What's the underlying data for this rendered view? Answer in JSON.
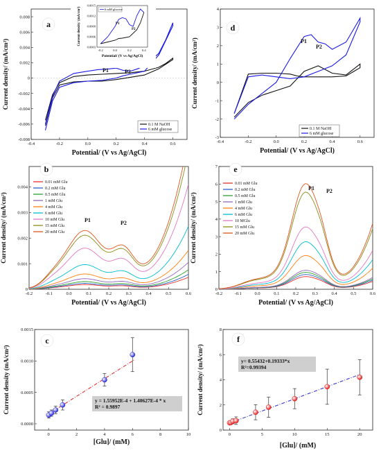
{
  "chart_data": [
    {
      "panel": "a",
      "type": "line",
      "xlabel": "Potential/ (V vs Ag/AgCl)",
      "ylabel": "Current density/ (mA/cm²)",
      "xlim": [
        -0.4,
        0.7
      ],
      "ylim": [
        -0.008,
        0.009
      ],
      "xticks": [
        "-0.4",
        "-0.2",
        "0.0",
        "0.2",
        "0.4",
        "0.6"
      ],
      "yticks": [
        "-0.008",
        "-0.006",
        "-0.004",
        "-0.002",
        "0",
        "0.002",
        "0.004",
        "0.006",
        "0.008"
      ],
      "legend": [
        "0.1 M NaOH",
        "6 mM glucose"
      ],
      "annotations": [
        "P1",
        "P2"
      ],
      "series": [
        {
          "name": "0.1 M NaOH",
          "color": "#111111",
          "x": [
            -0.3,
            -0.25,
            -0.2,
            -0.1,
            0.0,
            0.1,
            0.2,
            0.3,
            0.4,
            0.5,
            0.55,
            0.6,
            0.6,
            0.5,
            0.4,
            0.3,
            0.2,
            0.1,
            0.0,
            -0.1,
            -0.2,
            -0.25,
            -0.3
          ],
          "y": [
            -0.0055,
            -0.0022,
            -0.0006,
            0.0002,
            0.0004,
            0.0005,
            0.0006,
            0.0007,
            0.0009,
            0.0014,
            0.0019,
            0.0026,
            0.0024,
            0.0012,
            0.0004,
            0.0001,
            -0.0002,
            -0.0004,
            -0.0004,
            -0.0005,
            -0.0009,
            -0.0026,
            -0.0062
          ]
        },
        {
          "name": "6 mM glucose",
          "color": "#1a1ae6",
          "x": [
            -0.3,
            -0.25,
            -0.2,
            -0.1,
            0.0,
            0.07,
            0.15,
            0.2,
            0.25,
            0.3,
            0.35,
            0.4,
            0.5,
            0.55,
            0.6,
            0.6,
            0.5,
            0.4,
            0.3,
            0.25,
            0.2,
            0.1,
            0.0,
            -0.1,
            -0.2,
            -0.25,
            -0.3
          ],
          "y": [
            -0.006,
            -0.0024,
            -0.0004,
            0.0006,
            0.0009,
            0.0011,
            0.0012,
            0.0013,
            0.001,
            0.0009,
            0.0012,
            0.0016,
            0.0032,
            0.005,
            0.0072,
            0.0068,
            0.003,
            0.0009,
            0.0005,
            0.0003,
            0.0,
            -0.0003,
            -0.0004,
            -0.0006,
            -0.0012,
            -0.003,
            -0.0068
          ]
        }
      ]
    },
    {
      "panel": "a-inset",
      "type": "line",
      "title": "",
      "xlim": [
        -0.25,
        0.45
      ],
      "ylim": [
        0.0003,
        0.0015
      ],
      "xticks": [
        "-0.2",
        "0.0",
        "0.2",
        "0.4"
      ],
      "yticks": [
        "0.0003",
        "0.0006",
        "0.0009",
        "0.0012",
        "0.0015"
      ],
      "xlabel": "Potential/ (V vs Ag/AgCl)",
      "ylabel": "Current density/ (mA/cm²)",
      "legend": [
        "6 mM glucose"
      ],
      "annotations": [
        "P1",
        "P2"
      ],
      "series": [
        {
          "name": "6 mM glucose",
          "color": "#1a1ae6",
          "x": [
            -0.2,
            -0.1,
            0.0,
            0.05,
            0.1,
            0.15,
            0.2,
            0.25,
            0.3,
            0.35,
            0.4
          ],
          "y": [
            0.0004,
            0.0006,
            0.0009,
            0.0011,
            0.00115,
            0.00112,
            0.00095,
            0.0009,
            0.0012,
            0.0014,
            0.0013
          ]
        },
        {
          "name": "return",
          "color": "#111111",
          "x": [
            0.4,
            0.35,
            0.3,
            0.25,
            0.2,
            0.15,
            0.1,
            0.05,
            0.0,
            -0.1,
            -0.2
          ],
          "y": [
            0.0013,
            0.001,
            0.0008,
            0.0007,
            0.0006,
            0.00058,
            0.00056,
            0.00055,
            0.0005,
            0.00045,
            0.0004
          ]
        }
      ]
    },
    {
      "panel": "b",
      "type": "line",
      "xlabel": "Potential/ (V vs Ag/AgCl)",
      "ylabel": "Current density/ (mA/cm²)",
      "xlim": [
        -0.2,
        0.6
      ],
      "ylim": [
        0,
        0.0048
      ],
      "xticks": [
        "-0.2",
        "-0.1",
        "0.0",
        "0.1",
        "0.2",
        "0.3",
        "0.4",
        "0.5",
        "0.6"
      ],
      "yticks": [
        "0",
        "0.001",
        "0.002",
        "0.003",
        "0.004"
      ],
      "annotations": [
        "P1",
        "P2"
      ],
      "series": [
        {
          "name": "0.01 mM Glu",
          "color": "#e8302b",
          "scale": 0.08
        },
        {
          "name": "0.2 mM Glu",
          "color": "#2a62c9",
          "scale": 0.1
        },
        {
          "name": "0.5 mM Glu",
          "color": "#2ca02c",
          "scale": 0.13
        },
        {
          "name": "1 mM Glu",
          "color": "#9467bd",
          "scale": 0.18
        },
        {
          "name": "4 mM Glu",
          "color": "#ff7f0e",
          "scale": 0.26
        },
        {
          "name": "6 mM Glu",
          "color": "#00bcd4",
          "scale": 0.42
        },
        {
          "name": "10 mM Glu",
          "color": "#e377c2",
          "scale": 0.7
        },
        {
          "name": "15 mM Glu",
          "color": "#8c8c1a",
          "scale": 0.92
        },
        {
          "name": "20 mM Glu",
          "color": "#e0541d",
          "scale": 1.0
        }
      ]
    },
    {
      "panel": "c",
      "type": "scatter",
      "xlabel": "[Glu]/ (mM)",
      "ylabel": "Current density (mA/cm²)",
      "xlim": [
        -1,
        10
      ],
      "ylim": [
        -0.0001,
        0.0015
      ],
      "xticks": [
        "0",
        "2",
        "4",
        "6",
        "8",
        "10"
      ],
      "yticks": [
        "0.0000",
        "0.0005",
        "0.0010",
        "0.0015"
      ],
      "equation": "y = 1.55952E-4 + 1.40627E-4 * x",
      "r2": "R² = 0.9897",
      "fit": {
        "intercept": 0.000155952,
        "slope": 0.000140627,
        "x": [
          -0.1,
          6.1
        ]
      },
      "points": [
        {
          "x": 0.01,
          "y": 0.00014,
          "err": 5e-05
        },
        {
          "x": 0.2,
          "y": 0.00017,
          "err": 5e-05
        },
        {
          "x": 0.5,
          "y": 0.00022,
          "err": 6e-05
        },
        {
          "x": 1.0,
          "y": 0.0003,
          "err": 8e-05
        },
        {
          "x": 4.0,
          "y": 0.0007,
          "err": 0.0001
        },
        {
          "x": 6.0,
          "y": 0.0011,
          "err": 0.00027
        }
      ],
      "point_color": "#2b2bd6",
      "fit_color": "#e02020"
    },
    {
      "panel": "d",
      "type": "line",
      "xlabel": "Potential/ (V vs Ag/AgCl)",
      "ylabel": "Current density/ (mA/cm²)",
      "xlim": [
        -0.4,
        0.7
      ],
      "ylim": [
        -3,
        4
      ],
      "xticks": [
        "-0.4",
        "-0.2",
        "0.0",
        "0.2",
        "0.4",
        "0.6"
      ],
      "yticks": [
        "-3",
        "-2",
        "-1",
        "0",
        "1",
        "2",
        "3",
        "4"
      ],
      "legend": [
        "0.1 M NaOH",
        "6 mM glucose"
      ],
      "annotations": [
        "P1",
        "P2"
      ],
      "series": [
        {
          "name": "0.1 M NaOH",
          "color": "#111111",
          "x": [
            -0.3,
            -0.2,
            -0.1,
            0.0,
            0.1,
            0.15,
            0.2,
            0.3,
            0.4,
            0.5,
            0.6,
            0.6,
            0.5,
            0.4,
            0.3,
            0.2,
            0.15,
            0.1,
            0.0,
            -0.1,
            -0.2,
            -0.3
          ],
          "y": [
            -1.9,
            -1.1,
            -0.7,
            -0.45,
            -0.2,
            0.2,
            0.6,
            0.9,
            0.5,
            0.4,
            1.0,
            0.8,
            0.35,
            0.3,
            0.3,
            0.3,
            0.35,
            0.45,
            0.5,
            0.5,
            0.45,
            -1.7
          ]
        },
        {
          "name": "6 mM glucose",
          "color": "#1a1ae6",
          "x": [
            -0.3,
            -0.2,
            -0.1,
            0.0,
            0.1,
            0.2,
            0.25,
            0.3,
            0.35,
            0.4,
            0.5,
            0.6,
            0.6,
            0.5,
            0.4,
            0.3,
            0.2,
            0.1,
            0.0,
            -0.1,
            -0.2,
            -0.3
          ],
          "y": [
            -2.0,
            -1.2,
            -0.6,
            0.0,
            1.3,
            2.5,
            2.6,
            2.2,
            2.1,
            1.8,
            2.2,
            3.5,
            3.3,
            1.5,
            0.9,
            0.6,
            0.3,
            0.2,
            0.3,
            0.4,
            0.3,
            -1.7
          ]
        }
      ]
    },
    {
      "panel": "e",
      "type": "line",
      "xlabel": "Potential/ (V vs Ag/AgCl)",
      "ylabel": "Current density/ (mA/cm²)",
      "xlim": [
        -0.2,
        0.6
      ],
      "ylim": [
        0,
        7
      ],
      "xticks": [
        "-0.2",
        "-0.1",
        "0.0",
        "0.1",
        "0.2",
        "0.3",
        "0.4",
        "0.5",
        "0.6"
      ],
      "yticks": [
        "0",
        "1",
        "2",
        "3",
        "4",
        "5",
        "6",
        "7"
      ],
      "annotations": [
        "P1",
        "P2"
      ],
      "series": [
        {
          "name": "0.01 mM Glu",
          "color": "#e8302b",
          "scale": 0.12
        },
        {
          "name": "0.2 mM Glu",
          "color": "#2a62c9",
          "scale": 0.14
        },
        {
          "name": "0.5 mM Glu",
          "color": "#2ca02c",
          "scale": 0.16
        },
        {
          "name": "1 mM Glu",
          "color": "#9467bd",
          "scale": 0.18
        },
        {
          "name": "4 mM Glu",
          "color": "#ff7f0e",
          "scale": 0.32
        },
        {
          "name": "6 mM Glu",
          "color": "#00bcd4",
          "scale": 0.45
        },
        {
          "name": "10 MGlu",
          "color": "#e377c2",
          "scale": 0.59
        },
        {
          "name": "15 mM Glu",
          "color": "#8c8c1a",
          "scale": 0.92
        },
        {
          "name": "20 mM Glu",
          "color": "#e0541d",
          "scale": 1.0
        }
      ]
    },
    {
      "panel": "f",
      "type": "scatter",
      "xlabel": "[Glu]/ (mM)",
      "ylabel": "Current density/ (mA/cm²)",
      "xlim": [
        -1,
        22
      ],
      "ylim": [
        0,
        8
      ],
      "xticks": [
        "0",
        "5",
        "10",
        "15",
        "20"
      ],
      "yticks": [
        "0",
        "2",
        "4",
        "6",
        "8"
      ],
      "equation": "y= 0.55432+0.19333*x",
      "r2": "R²=0.99394",
      "fit": {
        "intercept": 0.55432,
        "slope": 0.19333,
        "x": [
          0,
          20
        ]
      },
      "points": [
        {
          "x": 0.01,
          "y": 0.58,
          "err": 0.1
        },
        {
          "x": 0.2,
          "y": 0.6,
          "err": 0.12
        },
        {
          "x": 0.5,
          "y": 0.7,
          "err": 0.2
        },
        {
          "x": 1.0,
          "y": 0.75,
          "err": 0.3
        },
        {
          "x": 4.0,
          "y": 1.42,
          "err": 0.6
        },
        {
          "x": 6.0,
          "y": 1.82,
          "err": 0.8
        },
        {
          "x": 10.0,
          "y": 2.5,
          "err": 0.8
        },
        {
          "x": 15.0,
          "y": 3.45,
          "err": 1.4
        },
        {
          "x": 20.0,
          "y": 4.2,
          "err": 1.4
        }
      ],
      "point_color": "#e02020",
      "fit_color": "#2b2bd6"
    }
  ],
  "panel_letters": [
    "a",
    "b",
    "c",
    "d",
    "e",
    "f"
  ]
}
